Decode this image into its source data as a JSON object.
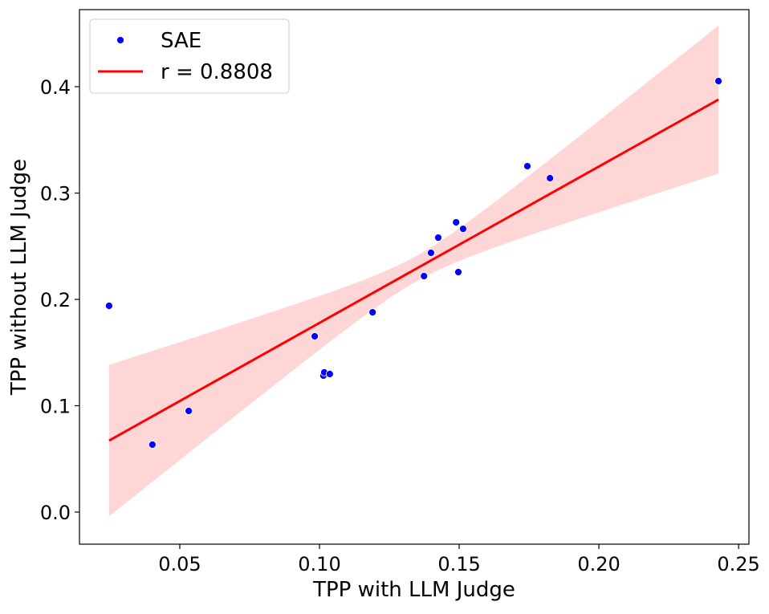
{
  "chart_data": {
    "type": "scatter",
    "title": "",
    "xlabel": "TPP with LLM Judge",
    "ylabel": "TPP without LLM Judge",
    "xlim": [
      0.0141,
      0.2537
    ],
    "ylim": [
      -0.0302,
      0.4725
    ],
    "xticks": [
      0.05,
      0.1,
      0.15,
      0.2,
      0.25
    ],
    "xtick_labels": [
      "0.05",
      "0.10",
      "0.15",
      "0.20",
      "0.25"
    ],
    "yticks": [
      0.0,
      0.1,
      0.2,
      0.3,
      0.4
    ],
    "ytick_labels": [
      "0.0",
      "0.1",
      "0.2",
      "0.3",
      "0.4"
    ],
    "grid": false,
    "legend_position": "top-left",
    "series": [
      {
        "name": "SAE",
        "color": "#0000ff",
        "points": [
          [
            0.0247,
            0.194
          ],
          [
            0.0402,
            0.0634
          ],
          [
            0.0532,
            0.0951
          ],
          [
            0.0983,
            0.1653
          ],
          [
            0.1014,
            0.1283
          ],
          [
            0.1017,
            0.1313
          ],
          [
            0.1037,
            0.1298
          ],
          [
            0.119,
            0.1879
          ],
          [
            0.1374,
            0.2219
          ],
          [
            0.1399,
            0.2438
          ],
          [
            0.1425,
            0.2581
          ],
          [
            0.1489,
            0.2725
          ],
          [
            0.1497,
            0.2257
          ],
          [
            0.1514,
            0.2664
          ],
          [
            0.1744,
            0.3253
          ],
          [
            0.1825,
            0.314
          ],
          [
            0.2428,
            0.4053
          ]
        ]
      }
    ],
    "regression": {
      "label": "r = 0.8808",
      "color": "#ff0000",
      "x_range": [
        0.0247,
        0.2428
      ],
      "y_range": [
        0.0672,
        0.3879
      ],
      "ci": {
        "band_color": "#ffd6d6",
        "x_center": 0.135,
        "min_halfwidth": 0.012,
        "k": 0.405
      }
    }
  }
}
